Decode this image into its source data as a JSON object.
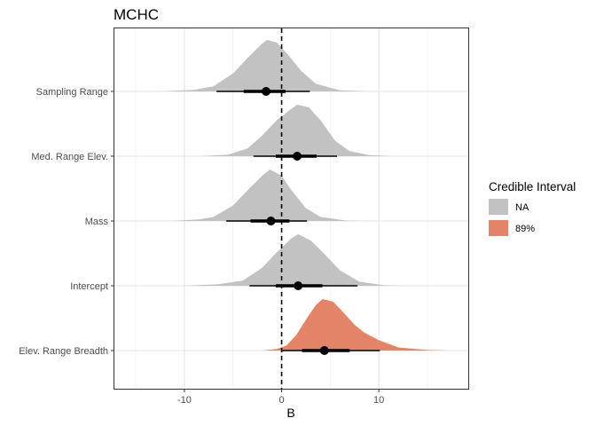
{
  "chart_data": {
    "type": "area",
    "title": "MCHC",
    "xlabel": "B",
    "ylabel": "",
    "xlim": [
      -17.2,
      19.2
    ],
    "xticks": [
      -10,
      0,
      10
    ],
    "grid": true,
    "reference_line": 0,
    "categories": [
      "Sampling Range",
      "Med. Range Elev.",
      "Mass",
      "Intercept",
      "Elev. Range Breadth"
    ],
    "series": [
      {
        "category": "Sampling Range",
        "ci": "NA",
        "color": "#c2c2c2",
        "density": [
          [
            -12.5,
            0
          ],
          [
            -9.0,
            0.03
          ],
          [
            -7.0,
            0.1
          ],
          [
            -5.0,
            0.35
          ],
          [
            -3.5,
            0.65
          ],
          [
            -2.0,
            0.93
          ],
          [
            -1.5,
            1.0
          ],
          [
            -0.5,
            0.95
          ],
          [
            0.5,
            0.75
          ],
          [
            2.0,
            0.4
          ],
          [
            3.5,
            0.15
          ],
          [
            6.0,
            0.02
          ],
          [
            9.0,
            0
          ]
        ],
        "median": -1.6,
        "inner": [
          -3.9,
          0.4
        ],
        "outer": [
          -6.7,
          2.9
        ]
      },
      {
        "category": "Med. Range Elev.",
        "ci": "NA",
        "color": "#c2c2c2",
        "density": [
          [
            -8.5,
            0
          ],
          [
            -5.5,
            0.03
          ],
          [
            -3.5,
            0.15
          ],
          [
            -2.0,
            0.4
          ],
          [
            -0.5,
            0.7
          ],
          [
            1.0,
            0.92
          ],
          [
            1.6,
            1.0
          ],
          [
            2.8,
            0.95
          ],
          [
            4.0,
            0.7
          ],
          [
            5.5,
            0.3
          ],
          [
            7.0,
            0.1
          ],
          [
            9.0,
            0.02
          ],
          [
            11.5,
            0
          ]
        ],
        "median": 1.6,
        "inner": [
          -0.6,
          3.6
        ],
        "outer": [
          -2.9,
          5.7
        ]
      },
      {
        "category": "Mass",
        "ci": "NA",
        "color": "#c2c2c2",
        "density": [
          [
            -11.5,
            0
          ],
          [
            -8.5,
            0.03
          ],
          [
            -7.0,
            0.08
          ],
          [
            -5.0,
            0.3
          ],
          [
            -3.5,
            0.6
          ],
          [
            -2.0,
            0.88
          ],
          [
            -1.2,
            1.0
          ],
          [
            0.0,
            0.88
          ],
          [
            1.0,
            0.6
          ],
          [
            2.5,
            0.25
          ],
          [
            4.0,
            0.08
          ],
          [
            6.5,
            0.01
          ],
          [
            8.5,
            0
          ]
        ],
        "median": -1.1,
        "inner": [
          -3.2,
          0.8
        ],
        "outer": [
          -5.7,
          2.6
        ]
      },
      {
        "category": "Intercept",
        "ci": "NA",
        "color": "#c2c2c2",
        "density": [
          [
            -10.0,
            0
          ],
          [
            -6.5,
            0.03
          ],
          [
            -4.0,
            0.1
          ],
          [
            -2.0,
            0.35
          ],
          [
            -0.5,
            0.65
          ],
          [
            1.0,
            0.92
          ],
          [
            1.7,
            1.0
          ],
          [
            3.0,
            0.88
          ],
          [
            4.5,
            0.6
          ],
          [
            6.0,
            0.3
          ],
          [
            8.0,
            0.08
          ],
          [
            10.5,
            0.01
          ],
          [
            13.0,
            0
          ]
        ],
        "median": 1.7,
        "inner": [
          -0.6,
          4.2
        ],
        "outer": [
          -3.3,
          7.8
        ]
      },
      {
        "category": "Elev. Range Breadth",
        "ci": "89%",
        "color": "#e38468",
        "density": [
          [
            -2.0,
            0
          ],
          [
            -0.5,
            0.03
          ],
          [
            0.5,
            0.1
          ],
          [
            1.5,
            0.3
          ],
          [
            2.5,
            0.6
          ],
          [
            3.5,
            0.88
          ],
          [
            4.2,
            1.0
          ],
          [
            5.3,
            0.95
          ],
          [
            6.3,
            0.75
          ],
          [
            7.5,
            0.5
          ],
          [
            8.5,
            0.35
          ],
          [
            10.0,
            0.2
          ],
          [
            12.0,
            0.06
          ],
          [
            15.0,
            0.01
          ],
          [
            17.0,
            0
          ]
        ],
        "median": 4.4,
        "inner": [
          2.1,
          7.0
        ],
        "outer": [
          0.0,
          10.1
        ]
      }
    ],
    "legend": {
      "title": "Credible Interval",
      "entries": [
        {
          "label": "NA",
          "color": "#c2c2c2"
        },
        {
          "label": "89%",
          "color": "#e38468"
        }
      ],
      "position": "right"
    }
  }
}
